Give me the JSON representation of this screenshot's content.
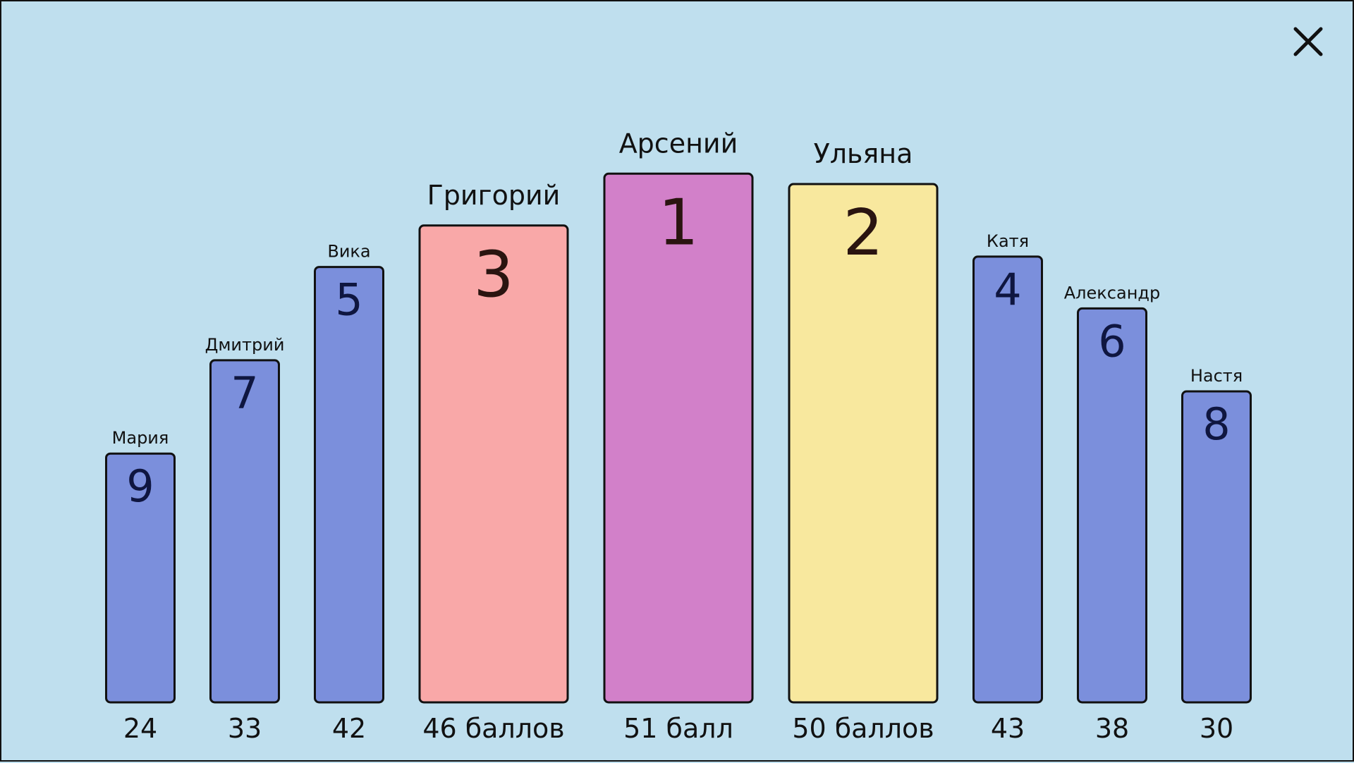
{
  "close_button": {
    "icon": "close-icon"
  },
  "chart_data": {
    "type": "bar",
    "title": "",
    "xlabel": "",
    "ylabel": "",
    "ylim": [
      0,
      51
    ],
    "grid": false,
    "legend": "none",
    "bars": [
      {
        "name": "Мария",
        "rank": "9",
        "score": 24,
        "score_label": "24",
        "color": "#7b8fdc",
        "podium": false
      },
      {
        "name": "Дмитрий",
        "rank": "7",
        "score": 33,
        "score_label": "33",
        "color": "#7b8fdc",
        "podium": false
      },
      {
        "name": "Вика",
        "rank": "5",
        "score": 42,
        "score_label": "42",
        "color": "#7b8fdc",
        "podium": false
      },
      {
        "name": "Григорий",
        "rank": "3",
        "score": 46,
        "score_label": "46 баллов",
        "color": "#f9a8a8",
        "podium": true
      },
      {
        "name": "Арсений",
        "rank": "1",
        "score": 51,
        "score_label": "51 балл",
        "color": "#d280c9",
        "podium": true
      },
      {
        "name": "Ульяна",
        "rank": "2",
        "score": 50,
        "score_label": "50 баллов",
        "color": "#f8e89e",
        "podium": true
      },
      {
        "name": "Катя",
        "rank": "4",
        "score": 43,
        "score_label": "43",
        "color": "#7b8fdc",
        "podium": false
      },
      {
        "name": "Александр",
        "rank": "6",
        "score": 38,
        "score_label": "38",
        "color": "#7b8fdc",
        "podium": false
      },
      {
        "name": "Настя",
        "rank": "8",
        "score": 30,
        "score_label": "30",
        "color": "#7b8fdc",
        "podium": false
      }
    ]
  }
}
